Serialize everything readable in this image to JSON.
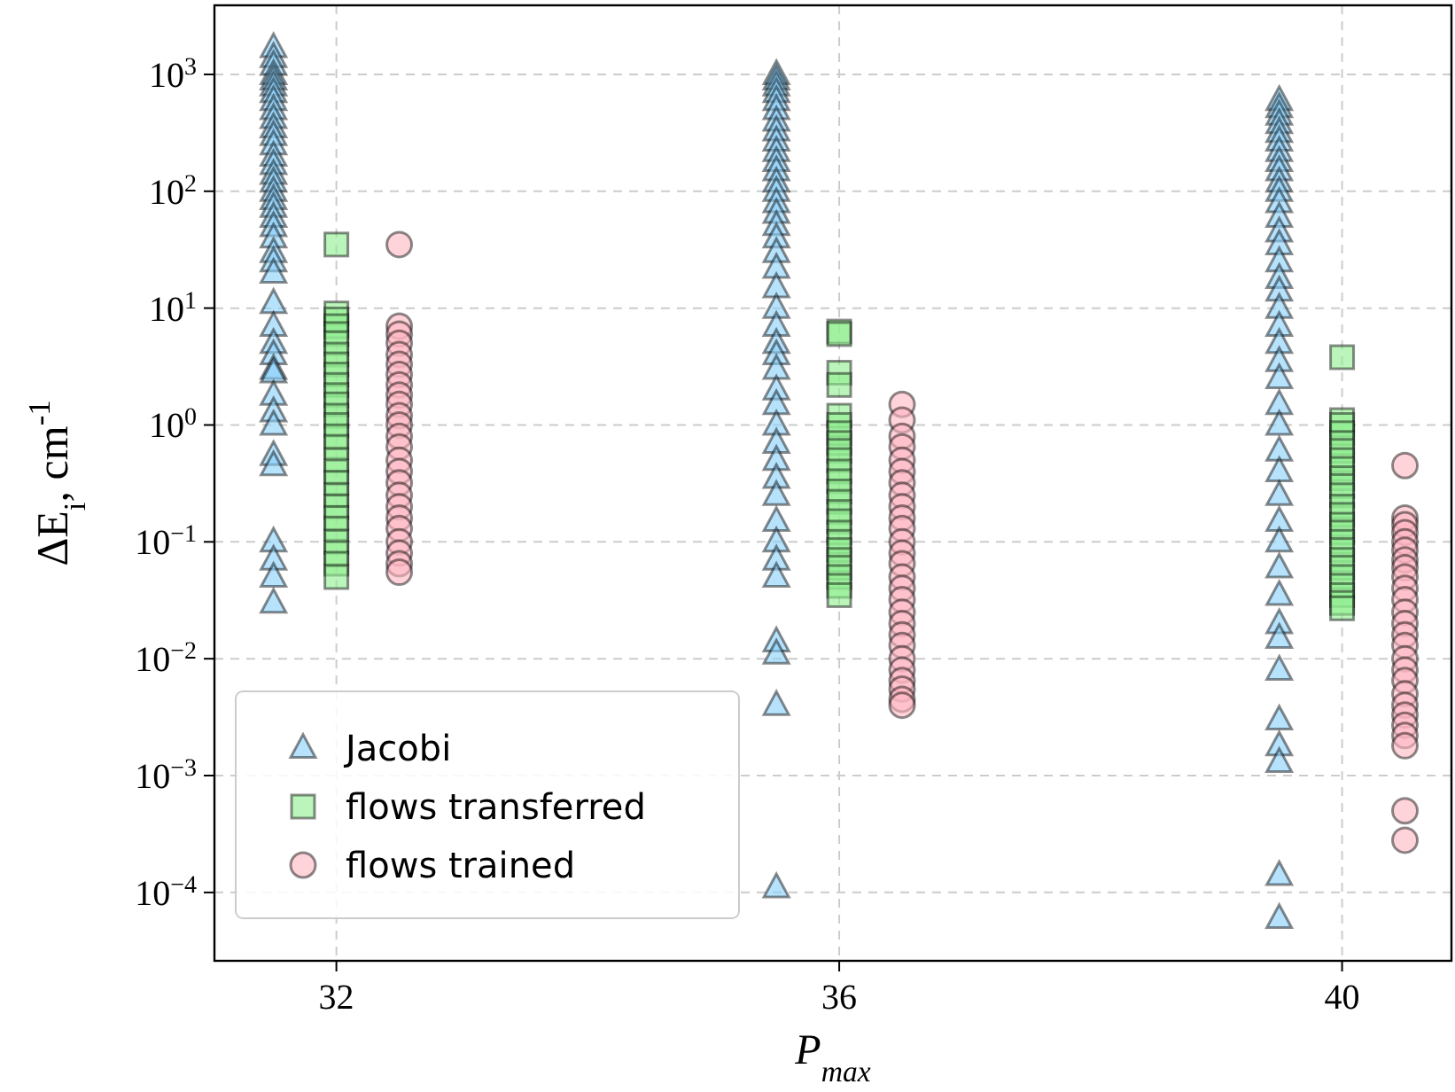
{
  "chart_data": {
    "type": "scatter",
    "xlabel": "P$_{max}$",
    "ylabel": "ΔE$_{i}$, cm$^{-1}$",
    "log": "y",
    "grid": true,
    "legend": "bottom left",
    "xlim": [
      31.03,
      40.87
    ],
    "xticks": [
      32,
      36,
      40
    ],
    "ylim": [
      2.6e-05,
      3900
    ],
    "yticks": [
      {
        "value": 0.0001,
        "label": "10$^{−4}$"
      },
      {
        "value": 0.001,
        "label": "10$^{−3}$"
      },
      {
        "value": 0.01,
        "label": "10$^{−2}$"
      },
      {
        "value": 0.1,
        "label": "10$^{−1}$"
      },
      {
        "value": 1,
        "label": "10$^{0}$"
      },
      {
        "value": 10,
        "label": "10$^{1}$"
      },
      {
        "value": 100,
        "label": "10$^{2}$"
      },
      {
        "value": 1000,
        "label": "10$^{3}$"
      }
    ],
    "series": [
      {
        "name": "Jacobi",
        "color": "#87cefa",
        "marker": "triangle",
        "x": [
          31.5,
          31.5,
          31.5,
          31.5,
          31.5,
          31.5,
          31.5,
          31.5,
          31.5,
          31.5,
          31.5,
          31.5,
          31.5,
          31.5,
          31.5,
          31.5,
          31.5,
          31.5,
          31.5,
          31.5,
          31.5,
          31.5,
          31.5,
          31.5,
          31.5,
          31.5,
          31.5,
          31.5,
          31.5,
          31.5,
          31.5,
          31.5,
          31.5,
          31.5,
          31.5,
          31.5,
          31.5,
          31.5,
          31.5,
          31.5,
          31.5,
          35.5,
          35.5,
          35.5,
          35.5,
          35.5,
          35.5,
          35.5,
          35.5,
          35.5,
          35.5,
          35.5,
          35.5,
          35.5,
          35.5,
          35.5,
          35.5,
          35.5,
          35.5,
          35.5,
          35.5,
          35.5,
          35.5,
          35.5,
          35.5,
          35.5,
          35.5,
          35.5,
          35.5,
          35.5,
          35.5,
          35.5,
          35.5,
          35.5,
          35.5,
          35.5,
          35.5,
          35.5,
          35.5,
          35.5,
          35.5,
          35.5,
          39.5,
          39.5,
          39.5,
          39.5,
          39.5,
          39.5,
          39.5,
          39.5,
          39.5,
          39.5,
          39.5,
          39.5,
          39.5,
          39.5,
          39.5,
          39.5,
          39.5,
          39.5,
          39.5,
          39.5,
          39.5,
          39.5,
          39.5,
          39.5,
          39.5,
          39.5,
          39.5,
          39.5,
          39.5,
          39.5,
          39.5,
          39.5,
          39.5,
          39.5,
          39.5,
          39.5,
          39.5,
          39.5,
          39.5,
          39.5
        ],
        "values": [
          1700,
          1400,
          1200,
          1000,
          900,
          800,
          700,
          600,
          500,
          420,
          350,
          300,
          250,
          200,
          170,
          140,
          120,
          100,
          85,
          73,
          60,
          50,
          40,
          30,
          25,
          20,
          11,
          7,
          5,
          4,
          3,
          2.8,
          1.8,
          1.3,
          1.0,
          0.55,
          0.45,
          0.1,
          0.07,
          0.05,
          0.03,
          1000,
          900,
          800,
          700,
          600,
          500,
          400,
          330,
          270,
          220,
          180,
          150,
          120,
          100,
          80,
          65,
          51,
          40,
          30,
          22,
          15,
          10,
          7,
          5,
          4,
          3,
          2,
          1.5,
          1.0,
          0.7,
          0.5,
          0.35,
          0.25,
          0.15,
          0.1,
          0.07,
          0.05,
          0.014,
          0.011,
          0.004,
          0.00011,
          600,
          520,
          450,
          380,
          320,
          270,
          220,
          180,
          150,
          120,
          100,
          80,
          60,
          45,
          35,
          25,
          18,
          14,
          10,
          7,
          5,
          3.5,
          2.5,
          1.5,
          1.0,
          0.6,
          0.4,
          0.25,
          0.15,
          0.1,
          0.06,
          0.035,
          0.02,
          0.015,
          0.008,
          0.003,
          0.0018,
          0.0013,
          0.00014,
          6e-05
        ]
      },
      {
        "name": "flows transferred",
        "color": "#90ee90",
        "marker": "square",
        "x": [
          32,
          32,
          32,
          32,
          32,
          32,
          32,
          32,
          32,
          32,
          32,
          32,
          32,
          32,
          32,
          32,
          32,
          32,
          32,
          32,
          32,
          32,
          32,
          32,
          32,
          32,
          32,
          36,
          36,
          36,
          36,
          36,
          36,
          36,
          36,
          36,
          36,
          36,
          36,
          36,
          36,
          36,
          36,
          36,
          36,
          36,
          36,
          36,
          36,
          36,
          36,
          40,
          40,
          40,
          40,
          40,
          40,
          40,
          40,
          40,
          40,
          40,
          40,
          40,
          40,
          40,
          40,
          40,
          40,
          40,
          40,
          40,
          40,
          40,
          40
        ],
        "values": [
          35,
          9,
          8,
          7,
          6,
          5,
          4,
          3.3,
          2.7,
          2.2,
          1.8,
          1.5,
          1.2,
          1.0,
          0.8,
          0.65,
          0.5,
          0.4,
          0.32,
          0.25,
          0.2,
          0.16,
          0.13,
          0.1,
          0.08,
          0.065,
          0.05,
          6.3,
          6,
          2.8,
          2.2,
          1.2,
          1.0,
          0.85,
          0.7,
          0.6,
          0.5,
          0.4,
          0.33,
          0.27,
          0.22,
          0.18,
          0.15,
          0.12,
          0.1,
          0.085,
          0.07,
          0.06,
          0.05,
          0.042,
          0.035,
          3.8,
          1.1,
          1.0,
          0.85,
          0.7,
          0.6,
          0.5,
          0.42,
          0.35,
          0.3,
          0.25,
          0.2,
          0.17,
          0.14,
          0.12,
          0.1,
          0.085,
          0.07,
          0.06,
          0.05,
          0.042,
          0.035,
          0.03,
          0.027
        ]
      },
      {
        "name": "flows trained",
        "color": "#ffb6c1",
        "marker": "circle",
        "x": [
          32.5,
          32.5,
          32.5,
          32.5,
          32.5,
          32.5,
          32.5,
          32.5,
          32.5,
          32.5,
          32.5,
          32.5,
          32.5,
          32.5,
          32.5,
          32.5,
          32.5,
          32.5,
          32.5,
          32.5,
          32.5,
          32.5,
          32.5,
          32.5,
          32.5,
          36.5,
          36.5,
          36.5,
          36.5,
          36.5,
          36.5,
          36.5,
          36.5,
          36.5,
          36.5,
          36.5,
          36.5,
          36.5,
          36.5,
          36.5,
          36.5,
          36.5,
          36.5,
          36.5,
          36.5,
          36.5,
          36.5,
          36.5,
          36.5,
          36.5,
          36.5,
          36.5,
          40.5,
          40.5,
          40.5,
          40.5,
          40.5,
          40.5,
          40.5,
          40.5,
          40.5,
          40.5,
          40.5,
          40.5,
          40.5,
          40.5,
          40.5,
          40.5,
          40.5,
          40.5,
          40.5,
          40.5,
          40.5,
          40.5,
          40.5,
          40.5,
          40.5,
          40.5
        ],
        "values": [
          35,
          7,
          6,
          5,
          4,
          3.3,
          2.7,
          2.2,
          1.8,
          1.5,
          1.2,
          1.0,
          0.8,
          0.65,
          0.5,
          0.4,
          0.32,
          0.25,
          0.2,
          0.16,
          0.13,
          0.1,
          0.08,
          0.065,
          0.055,
          1.5,
          1.1,
          0.8,
          0.65,
          0.5,
          0.4,
          0.32,
          0.25,
          0.2,
          0.16,
          0.13,
          0.1,
          0.08,
          0.065,
          0.05,
          0.04,
          0.032,
          0.025,
          0.02,
          0.016,
          0.013,
          0.01,
          0.008,
          0.0065,
          0.0055,
          0.0045,
          0.004,
          0.45,
          0.16,
          0.14,
          0.12,
          0.1,
          0.085,
          0.07,
          0.06,
          0.05,
          0.04,
          0.032,
          0.025,
          0.02,
          0.016,
          0.013,
          0.01,
          0.008,
          0.0065,
          0.005,
          0.004,
          0.0033,
          0.0027,
          0.0022,
          0.0018,
          0.0005,
          0.00028
        ]
      }
    ]
  }
}
